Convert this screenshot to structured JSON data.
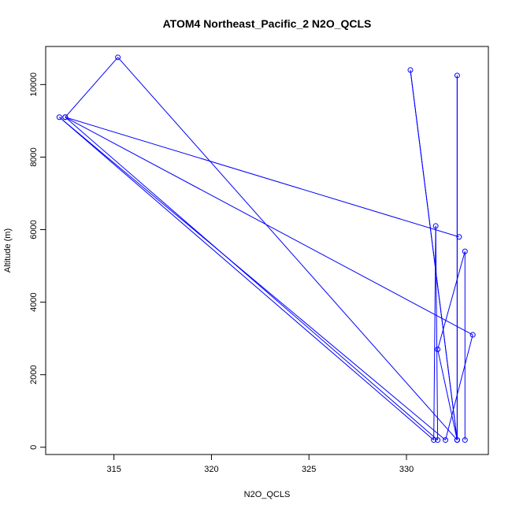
{
  "chart_data": {
    "type": "line",
    "title": "ATOM4 Northeast_Pacific_2 N2O_QCLS",
    "xlabel": "N2O_QCLS",
    "ylabel": "Altitude (m)",
    "xlim": [
      311.5,
      334.2
    ],
    "ylim": [
      -200,
      11050
    ],
    "xticks": [
      315,
      320,
      325,
      330
    ],
    "yticks": [
      0,
      2000,
      4000,
      6000,
      8000,
      10000
    ],
    "grid": false,
    "legend": "none",
    "series": [
      {
        "color": "#0000ff",
        "marker": "open-circle",
        "points": [
          {
            "x": 332.7,
            "y": 5800
          },
          {
            "x": 312.5,
            "y": 9100
          },
          {
            "x": 333.4,
            "y": 3100
          },
          {
            "x": 332.0,
            "y": 200
          },
          {
            "x": 312.2,
            "y": 9100
          },
          {
            "x": 331.4,
            "y": 200
          },
          {
            "x": 331.5,
            "y": 6100
          },
          {
            "x": 331.6,
            "y": 200
          },
          {
            "x": 312.5,
            "y": 9100
          },
          {
            "x": 315.2,
            "y": 10750
          },
          {
            "x": 332.6,
            "y": 200
          },
          {
            "x": 330.2,
            "y": 10400
          },
          {
            "x": 332.6,
            "y": 200
          },
          {
            "x": 332.6,
            "y": 10250
          },
          {
            "x": 332.6,
            "y": 200
          },
          {
            "x": 331.6,
            "y": 2700
          },
          {
            "x": 333.0,
            "y": 5400
          },
          {
            "x": 333.0,
            "y": 200
          }
        ]
      }
    ]
  }
}
